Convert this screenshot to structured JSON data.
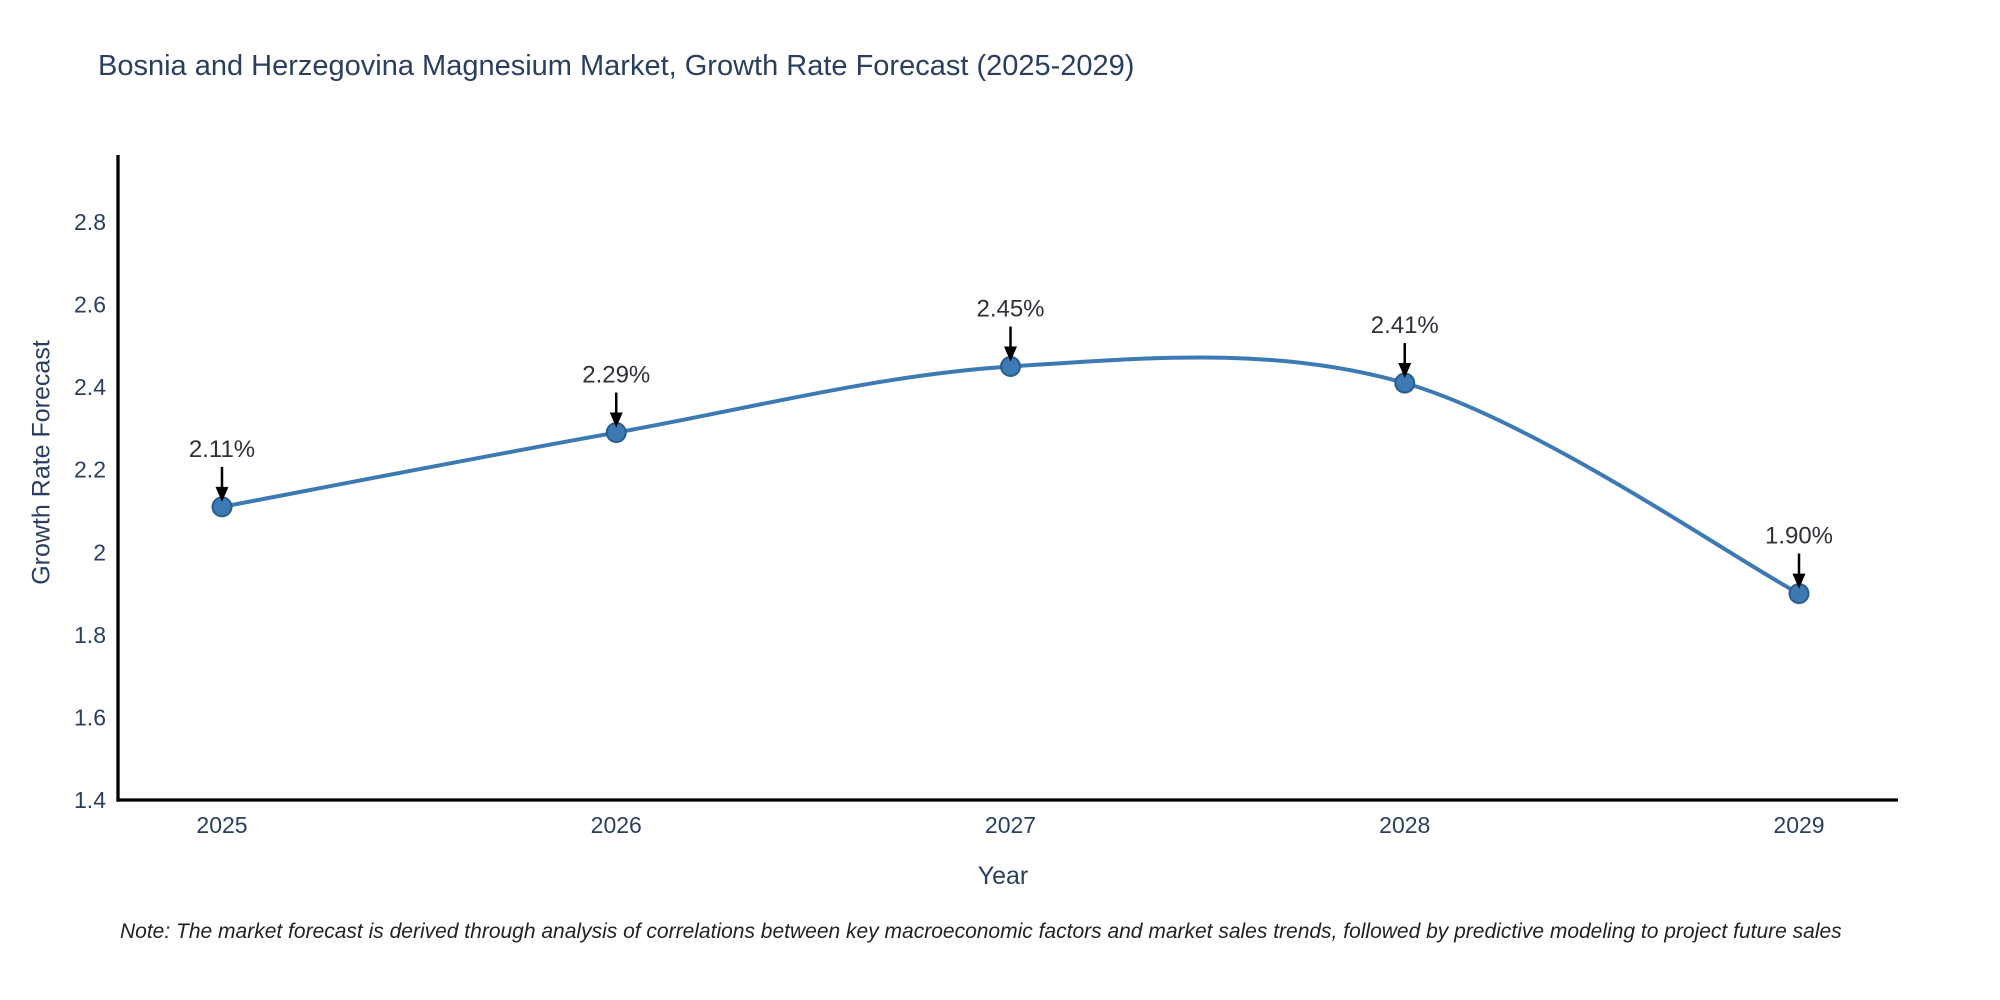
{
  "note": "Note: The market forecast is derived through analysis of correlations between key macroeconomic factors and market sales trends, followed by predictive modeling to project future sales",
  "chart_data": {
    "type": "line",
    "title": "Bosnia and Herzegovina Magnesium Market, Growth Rate Forecast (2025-2029)",
    "xlabel": "Year",
    "ylabel": "Growth Rate Forecast",
    "x": [
      2025,
      2026,
      2027,
      2028,
      2029
    ],
    "values": [
      2.11,
      2.29,
      2.45,
      2.41,
      1.9
    ],
    "point_labels": [
      "2.11%",
      "2.29%",
      "2.45%",
      "2.41%",
      "1.90%"
    ],
    "xtick_labels": [
      "2025",
      "2026",
      "2027",
      "2028",
      "2029"
    ],
    "ytick_values": [
      2.8,
      2.6,
      2.4,
      2.2,
      2.0,
      1.8,
      1.6,
      1.4
    ],
    "ytick_labels": [
      "2.8",
      "2.6",
      "2.4",
      "2.2",
      "2",
      "1.8",
      "1.6",
      "1.4"
    ],
    "ylim": [
      1.4,
      2.96
    ],
    "line_shape": "spline",
    "grid": false,
    "legend": "none",
    "colors": {
      "line": "#3d79b2",
      "marker_fill": "#3d79b2",
      "marker_edge": "#2b5d8f",
      "axis_line": "#000000",
      "tick_text": "#2a3f5f",
      "annotation_text": "#2e3138",
      "arrow": "#000000",
      "background": "#ffffff"
    }
  }
}
